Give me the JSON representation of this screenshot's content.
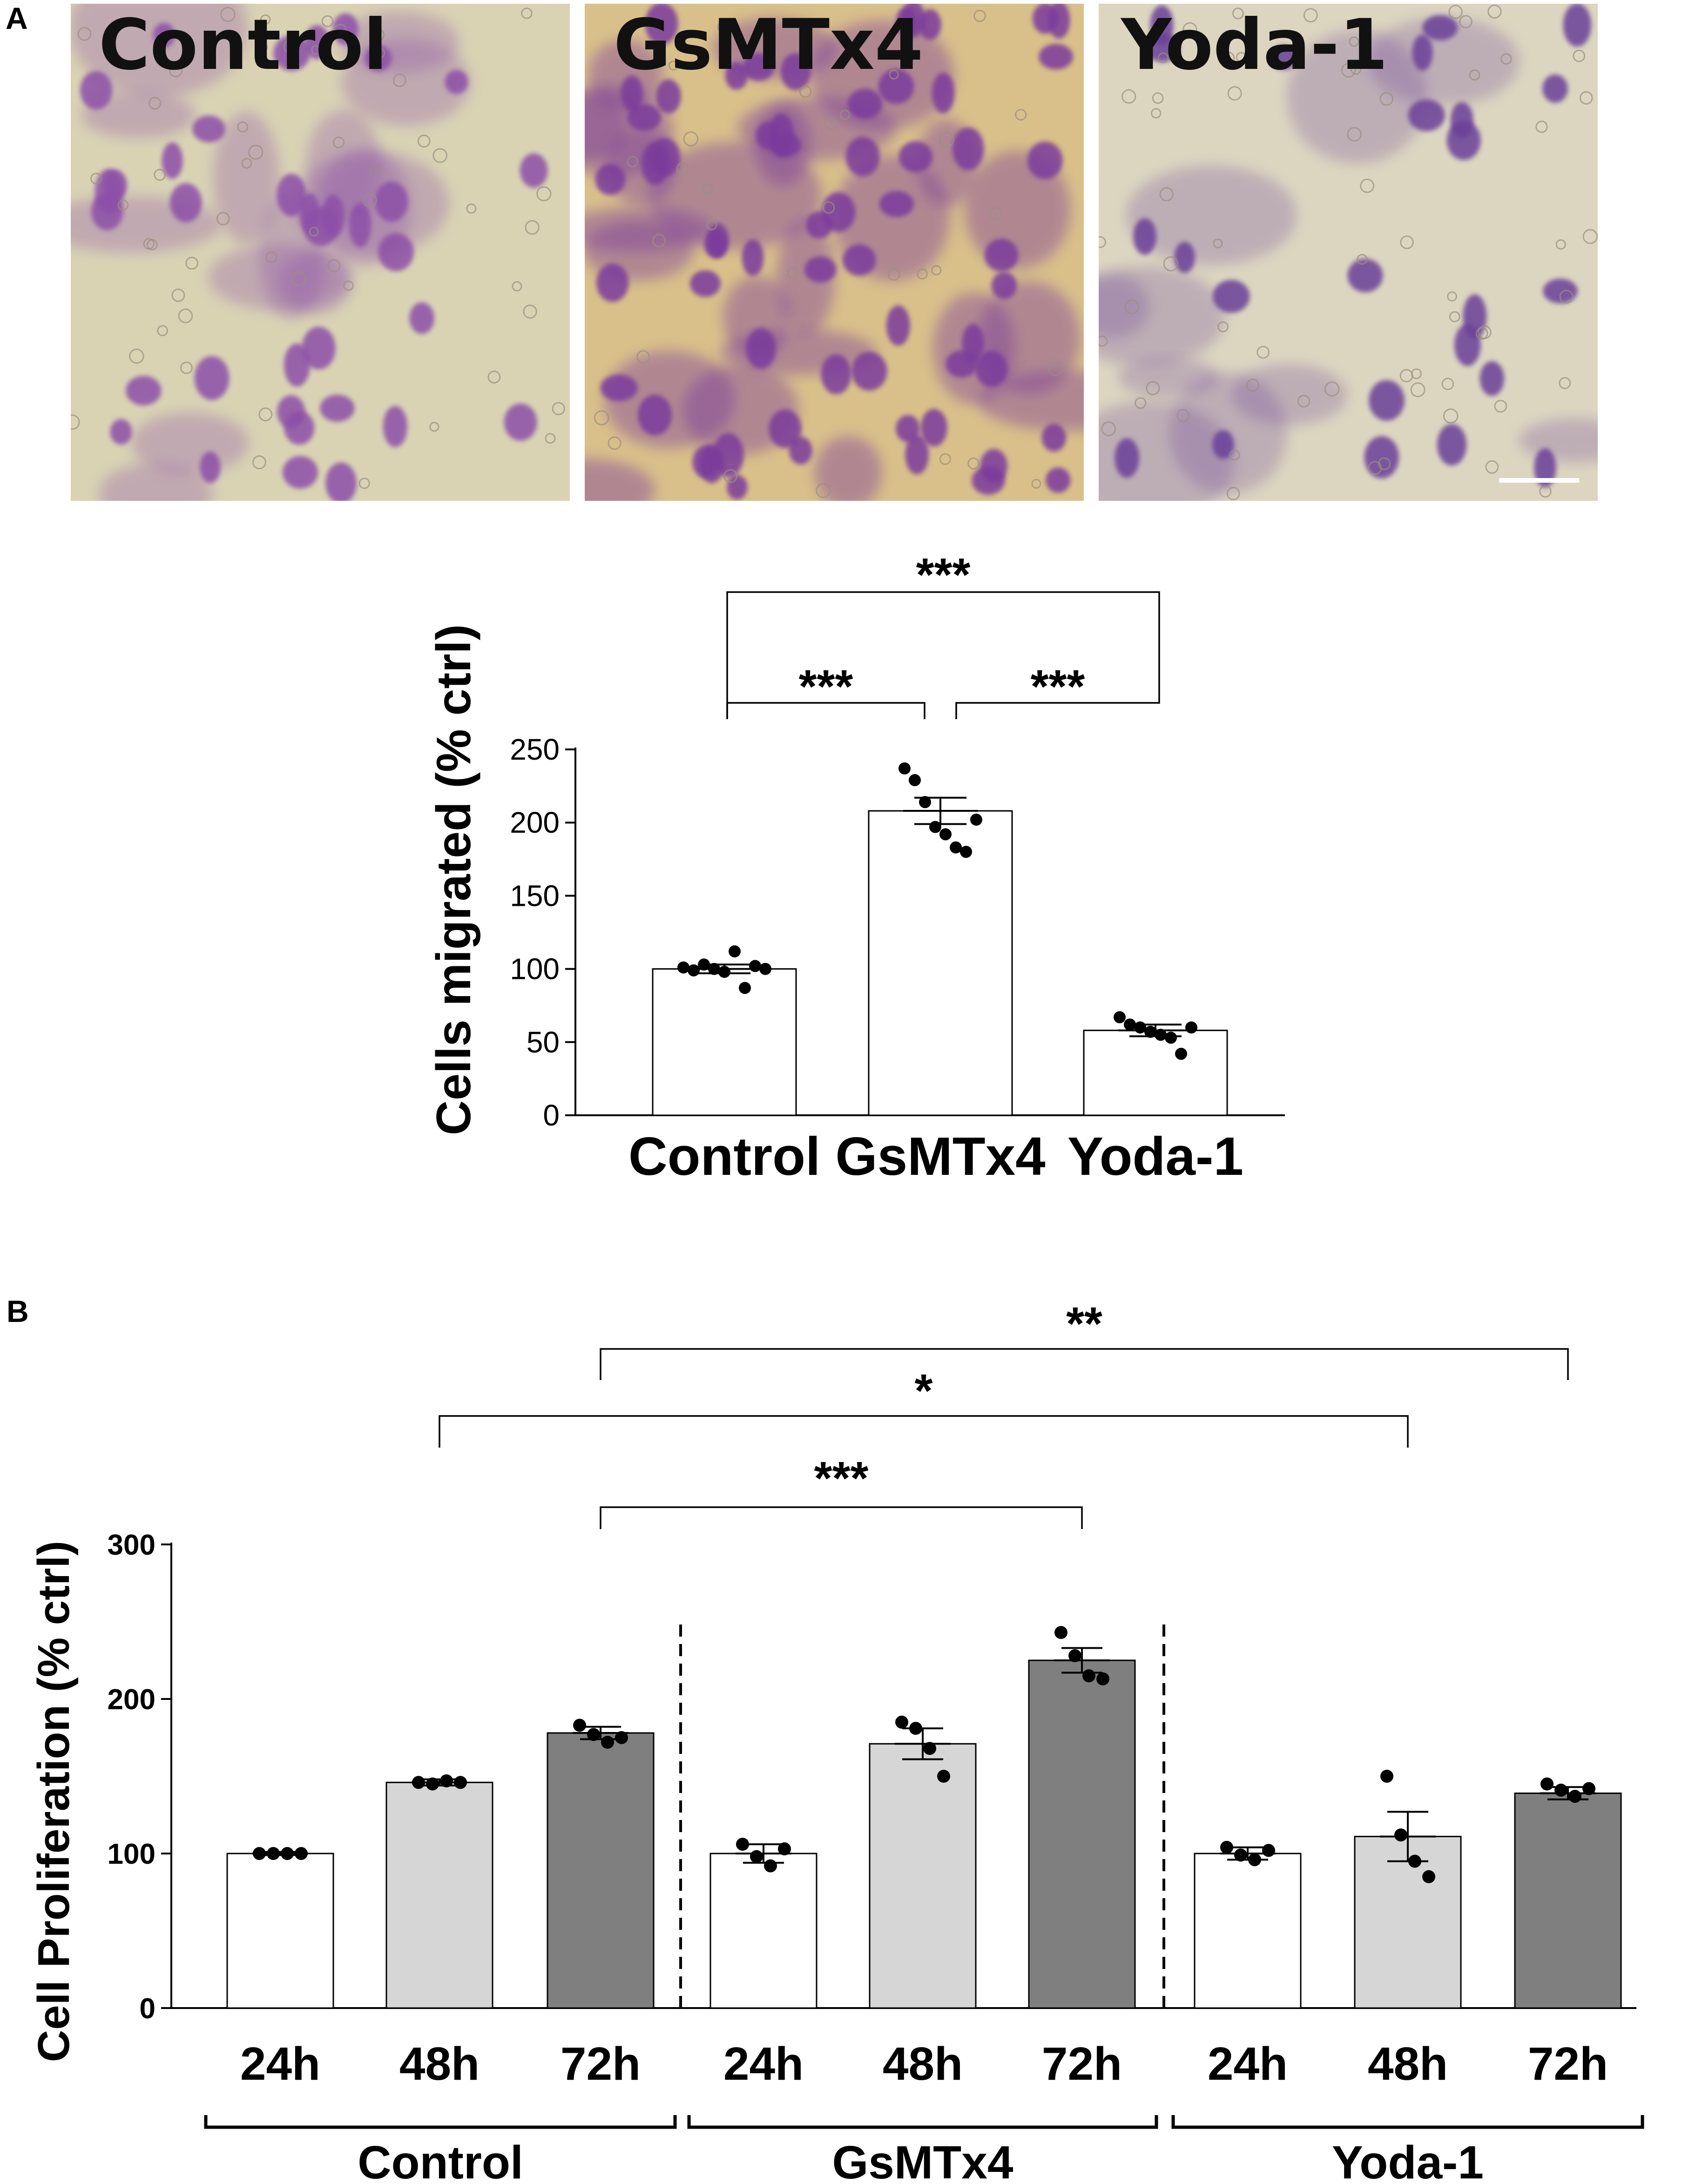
{
  "panels": {
    "a_letter": "A",
    "b_letter": "B"
  },
  "micrographs": [
    {
      "label": "Control",
      "tint": "#8c4fa8",
      "density": 0.45,
      "bg": "#d9d3b4"
    },
    {
      "label": "GsMTx4",
      "tint": "#7a3b9c",
      "density": 1.0,
      "bg": "#d9c08a"
    },
    {
      "label": "Yoda-1",
      "tint": "#6b3f99",
      "density": 0.22,
      "bg": "#dcd6c0"
    }
  ],
  "colors": {
    "stain_purple": "#8a4cab",
    "bar_white": "#ffffff",
    "bar_light_gray": "#d6d6d6",
    "bar_dark_gray": "#7f7f7f",
    "axis": "#000000"
  },
  "chart_data": [
    {
      "type": "bar",
      "panel": "A",
      "title": "",
      "xlabel": "",
      "ylabel": "Cells migrated (% ctrl)",
      "ylim": [
        0,
        250
      ],
      "yticks": [
        0,
        50,
        100,
        150,
        200,
        250
      ],
      "categories": [
        "Control",
        "GsMTx4",
        "Yoda-1"
      ],
      "values": [
        100,
        208,
        58
      ],
      "sem": [
        3,
        9,
        4
      ],
      "points": [
        [
          101,
          99,
          103,
          100,
          98,
          112,
          87,
          102,
          100
        ],
        [
          237,
          229,
          214,
          197,
          192,
          183,
          180,
          202
        ],
        [
          67,
          62,
          60,
          57,
          55,
          53,
          42,
          60
        ]
      ],
      "bar_color": "#ffffff",
      "significance": [
        {
          "groups": [
            "Control",
            "GsMTx4"
          ],
          "label": "***"
        },
        {
          "groups": [
            "GsMTx4",
            "Yoda-1"
          ],
          "label": "***"
        },
        {
          "groups": [
            "Control",
            "Yoda-1"
          ],
          "label": "***"
        }
      ]
    },
    {
      "type": "bar",
      "panel": "B",
      "title": "",
      "xlabel": "",
      "ylabel": "Cell Proliferation (% ctrl)",
      "ylim": [
        0,
        300
      ],
      "yticks": [
        0,
        100,
        200,
        300
      ],
      "groups": [
        "Control",
        "GsMTx4",
        "Yoda-1"
      ],
      "timepoints": [
        "24h",
        "48h",
        "72h"
      ],
      "timepoint_colors": [
        "#ffffff",
        "#d6d6d6",
        "#7f7f7f"
      ],
      "values": [
        [
          100,
          146,
          178
        ],
        [
          100,
          171,
          225
        ],
        [
          100,
          111,
          139
        ]
      ],
      "sem": [
        [
          1,
          2,
          4
        ],
        [
          6,
          10,
          8
        ],
        [
          4,
          16,
          4
        ]
      ],
      "points": [
        [
          [
            100,
            100,
            100,
            100
          ],
          [
            146,
            145,
            147,
            146
          ],
          [
            183,
            177,
            172,
            175
          ]
        ],
        [
          [
            106,
            98,
            92,
            103
          ],
          [
            185,
            181,
            168,
            150
          ],
          [
            243,
            228,
            215,
            213
          ]
        ],
        [
          [
            104,
            99,
            96,
            102
          ],
          [
            150,
            112,
            95,
            85
          ],
          [
            145,
            141,
            137,
            142
          ]
        ]
      ],
      "significance": [
        {
          "from": "Control 72h",
          "to": "GsMTx4 72h",
          "label": "***"
        },
        {
          "from": "Control 48h",
          "to": "Yoda-1 48h",
          "label": "*"
        },
        {
          "from": "Control 72h",
          "to": "Yoda-1 72h",
          "label": "**"
        }
      ]
    }
  ]
}
